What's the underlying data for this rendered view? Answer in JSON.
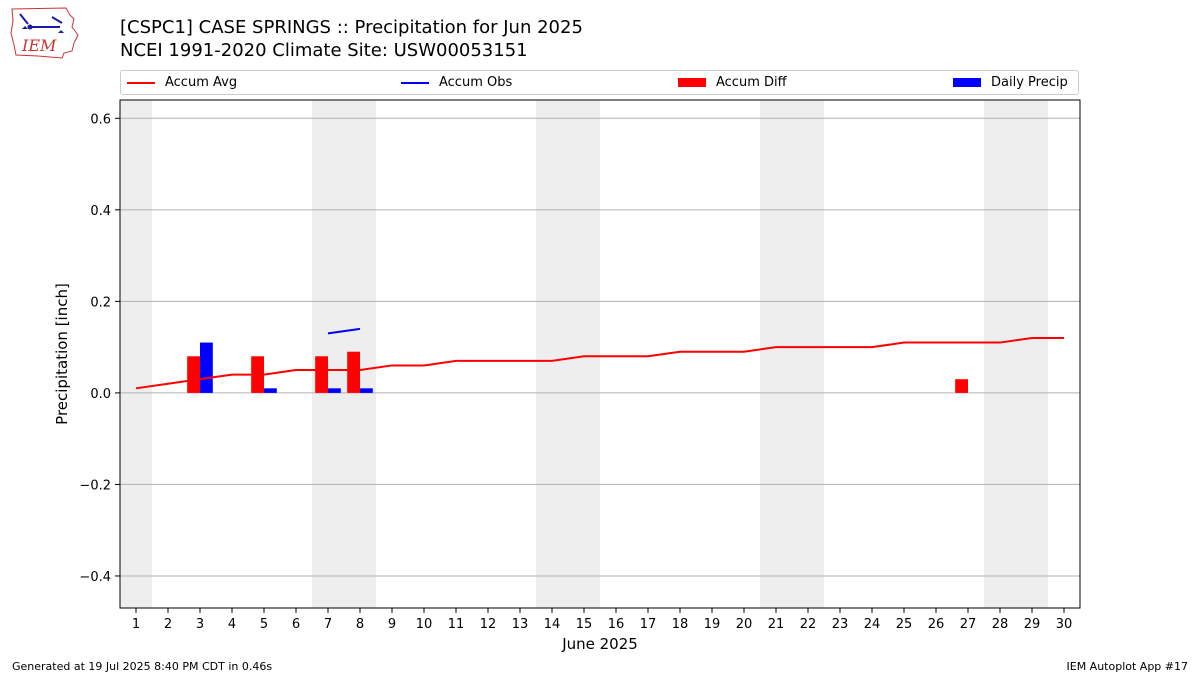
{
  "header": {
    "title_line1": "[CSPC1] CASE SPRINGS :: Precipitation for Jun 2025",
    "title_line2": "NCEI 1991-2020 Climate Site: USW00053151",
    "logo_text": "IEM"
  },
  "footer": {
    "generated": "Generated at 19 Jul 2025 8:40 PM CDT in 0.46s",
    "app": "IEM Autoplot App #17"
  },
  "colors": {
    "accum_avg": "#ff0000",
    "accum_obs": "#0000ff",
    "accum_diff": "#ff0000",
    "daily_precip": "#0000ff",
    "weekend_shade": "#eeeeee",
    "grid": "#b0b0b0"
  },
  "chart_data": {
    "type": "bar",
    "title": "[CSPC1] CASE SPRINGS :: Precipitation for Jun 2025",
    "subtitle": "NCEI 1991-2020 Climate Site: USW00053151",
    "xlabel": "June 2025",
    "ylabel": "Precipitation [inch]",
    "xlim": [
      0.5,
      30.5
    ],
    "ylim": [
      -0.47,
      0.64
    ],
    "yticks": [
      -0.4,
      -0.2,
      0.0,
      0.2,
      0.4,
      0.6
    ],
    "ytick_labels": [
      "−0.4",
      "−0.2",
      "0.0",
      "0.2",
      "0.4",
      "0.6"
    ],
    "xticks": [
      1,
      2,
      3,
      4,
      5,
      6,
      7,
      8,
      9,
      10,
      11,
      12,
      13,
      14,
      15,
      16,
      17,
      18,
      19,
      20,
      21,
      22,
      23,
      24,
      25,
      26,
      27,
      28,
      29,
      30
    ],
    "grid": "horizontal",
    "legend_position": "top",
    "weekend_days": [
      1,
      7,
      8,
      14,
      15,
      21,
      22,
      28,
      29
    ],
    "series": [
      {
        "name": "Accum Avg",
        "kind": "line",
        "color": "#ff0000",
        "x": [
          1,
          2,
          3,
          4,
          5,
          6,
          7,
          8,
          9,
          10,
          11,
          12,
          13,
          14,
          15,
          16,
          17,
          18,
          19,
          20,
          21,
          22,
          23,
          24,
          25,
          26,
          27,
          28,
          29,
          30
        ],
        "values": [
          0.01,
          0.02,
          0.03,
          0.04,
          0.04,
          0.05,
          0.05,
          0.05,
          0.06,
          0.06,
          0.07,
          0.07,
          0.07,
          0.07,
          0.08,
          0.08,
          0.08,
          0.09,
          0.09,
          0.09,
          0.1,
          0.1,
          0.1,
          0.1,
          0.11,
          0.11,
          0.11,
          0.11,
          0.12,
          0.12
        ]
      },
      {
        "name": "Accum Obs",
        "kind": "line",
        "color": "#0000ff",
        "x": [
          7,
          8
        ],
        "values": [
          0.13,
          0.14
        ]
      },
      {
        "name": "Accum Diff",
        "kind": "bar",
        "color": "#ff0000",
        "x": [
          3,
          5,
          7,
          8,
          27
        ],
        "values": [
          0.08,
          0.08,
          0.08,
          0.09,
          0.03
        ]
      },
      {
        "name": "Daily Precip",
        "kind": "bar",
        "color": "#0000ff",
        "x": [
          3,
          5,
          7,
          8
        ],
        "values": [
          0.11,
          0.01,
          0.01,
          0.01
        ]
      }
    ]
  }
}
